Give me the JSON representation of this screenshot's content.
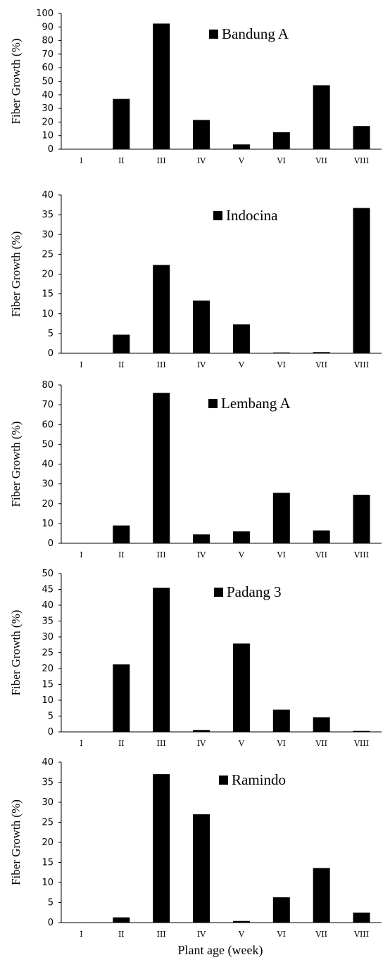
{
  "figure": {
    "xlabel": "Plant age (week)"
  },
  "chart_data": [
    {
      "type": "bar",
      "categories": [
        "I",
        "II",
        "III",
        "IV",
        "V",
        "VI",
        "VII",
        "VIII"
      ],
      "series": [
        {
          "name": "Bandung A",
          "values": [
            0,
            37,
            92.5,
            21.5,
            3.5,
            12.5,
            47,
            17
          ]
        }
      ],
      "ylabel": "Fiber Growth (%)",
      "ylim": [
        0,
        100
      ],
      "yticks": [
        0,
        10,
        20,
        30,
        40,
        50,
        60,
        70,
        80,
        90,
        100
      ],
      "legend": "top-center",
      "grid": false
    },
    {
      "type": "bar",
      "categories": [
        "I",
        "II",
        "III",
        "IV",
        "V",
        "VI",
        "VII",
        "VIII"
      ],
      "series": [
        {
          "name": "Indocina",
          "values": [
            0,
            4.7,
            22.3,
            13.3,
            7.3,
            0.2,
            0.3,
            36.7
          ]
        }
      ],
      "ylabel": "Fiber Growth (%)",
      "ylim": [
        0,
        40
      ],
      "yticks": [
        0,
        5,
        10,
        15,
        20,
        25,
        30,
        35,
        40
      ],
      "legend": "top-center",
      "grid": false
    },
    {
      "type": "bar",
      "categories": [
        "I",
        "II",
        "III",
        "IV",
        "V",
        "VI",
        "VII",
        "VIII"
      ],
      "series": [
        {
          "name": "Lembang A",
          "values": [
            0,
            9,
            76,
            4.5,
            6,
            25.5,
            6.5,
            24.5
          ]
        }
      ],
      "ylabel": "Fiber Growth (%)",
      "ylim": [
        0,
        80
      ],
      "yticks": [
        0,
        10,
        20,
        30,
        40,
        50,
        60,
        70,
        80
      ],
      "legend": "top-center",
      "grid": false
    },
    {
      "type": "bar",
      "categories": [
        "I",
        "II",
        "III",
        "IV",
        "V",
        "VI",
        "VII",
        "VIII"
      ],
      "series": [
        {
          "name": "Padang 3",
          "values": [
            0,
            21.3,
            45.5,
            0.6,
            27.9,
            7,
            4.6,
            0.3
          ]
        }
      ],
      "ylabel": "Fiber Growth (%)",
      "ylim": [
        0,
        50
      ],
      "yticks": [
        0,
        5,
        10,
        15,
        20,
        25,
        30,
        35,
        40,
        45,
        50
      ],
      "legend": "top-center",
      "grid": false
    },
    {
      "type": "bar",
      "categories": [
        "I",
        "II",
        "III",
        "IV",
        "V",
        "VI",
        "VII",
        "VIII"
      ],
      "series": [
        {
          "name": "Ramindo",
          "values": [
            0,
            1.3,
            37,
            27,
            0.4,
            6.3,
            13.6,
            2.5
          ]
        }
      ],
      "ylabel": "Fiber Growth (%)",
      "ylim": [
        0,
        40
      ],
      "yticks": [
        0,
        5,
        10,
        15,
        20,
        25,
        30,
        35,
        40
      ],
      "legend": "top-center",
      "grid": false
    }
  ]
}
